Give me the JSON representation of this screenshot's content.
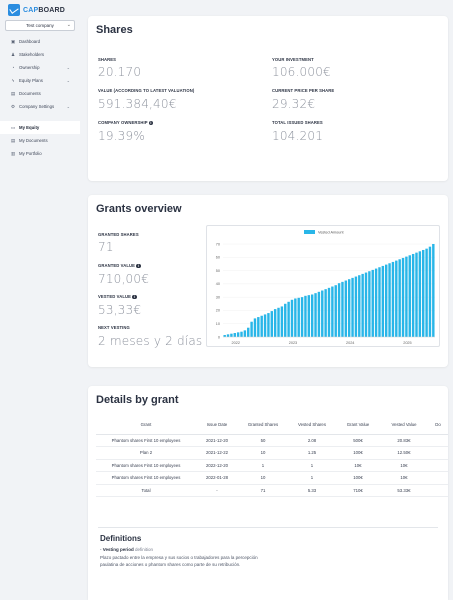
{
  "brand": {
    "name_part1": "CAP",
    "name_part2": "BOARD"
  },
  "company_select": {
    "value": "Test company"
  },
  "sidebar": {
    "items": [
      {
        "label": "Dashboard",
        "icon": "dashboard-icon",
        "chevron": false
      },
      {
        "label": "Stakeholders",
        "icon": "users-icon",
        "chevron": false
      },
      {
        "label": "Ownership",
        "icon": "pie-icon",
        "chevron": true
      },
      {
        "label": "Equity Plans",
        "icon": "bolt-icon",
        "chevron": true
      },
      {
        "label": "Documents",
        "icon": "document-icon",
        "chevron": false
      },
      {
        "label": "Company Settings",
        "icon": "gear-icon",
        "chevron": true
      }
    ],
    "my_items": [
      {
        "label": "My Equity",
        "icon": "id-card-icon",
        "active": true
      },
      {
        "label": "My Documents",
        "icon": "document-icon",
        "active": false
      },
      {
        "label": "My Portfolio",
        "icon": "portfolio-icon",
        "active": false
      }
    ]
  },
  "shares": {
    "title": "Shares",
    "shares_label": "SHARES",
    "shares_value": "20.170",
    "investment_label": "YOUR INVESTMENT",
    "investment_value": "106.000€",
    "value_label": "VALUE (ACCORDING TO LATEST VALUATION)",
    "value_value": "591.384,40€",
    "price_label": "CURRENT PRICE PER SHARE",
    "price_value": "29.32€",
    "ownership_label": "COMPANY OWNERSHIP",
    "ownership_value": "19.39%",
    "issued_label": "TOTAL ISSUED SHARES",
    "issued_value": "104.201"
  },
  "grants": {
    "title": "Grants overview",
    "granted_label": "GRANTED SHARES",
    "granted_value": "71",
    "granted_value_label": "GRANTED VALUE",
    "granted_value_value": "710,00€",
    "vested_label": "VESTED VALUE",
    "vested_value": "53,33€",
    "next_label": "NEXT VESTING",
    "next_value": "2 meses y 2 días"
  },
  "chart_data": {
    "type": "bar",
    "legend": "Vested Amount",
    "legend_position": "top",
    "color": "#29b6e8",
    "ylim": [
      0,
      70
    ],
    "yticks": [
      0,
      10,
      20,
      30,
      40,
      50,
      60,
      70
    ],
    "xticks": [
      "2022",
      "2023",
      "2024",
      "2025"
    ],
    "grid": true,
    "values": [
      1.5,
      2,
      2.5,
      3,
      3.5,
      4,
      5,
      7,
      11.5,
      14,
      15,
      16,
      17,
      18,
      19.5,
      21,
      22,
      23,
      25,
      26.5,
      28,
      29,
      29.5,
      30,
      31,
      31.5,
      32,
      33,
      34,
      35,
      36,
      37,
      38,
      39,
      40.5,
      41.5,
      42.5,
      43.5,
      44.5,
      45.5,
      46.5,
      47.5,
      48.5,
      49.5,
      50.5,
      51.5,
      52.5,
      53.5,
      54.5,
      55.5,
      56.5,
      57.5,
      58.5,
      59.5,
      60.5,
      61.5,
      62.5,
      63.5,
      64.5,
      65.5,
      66.5,
      68,
      70
    ]
  },
  "details": {
    "title": "Details by grant",
    "columns": [
      "Grant",
      "Issue Date",
      "Granted Shares",
      "Vested Shares",
      "Grant Value",
      "Vested Value",
      "Do"
    ],
    "rows": [
      [
        "Phantom shares First 10 employees",
        "2021-12-20",
        "50",
        "2.08",
        "500€",
        "20.83€",
        ""
      ],
      [
        "Plan 2",
        "2021-12-22",
        "10",
        "1.25",
        "100€",
        "12.50€",
        ""
      ],
      [
        "Phantom shares First 10 employees",
        "2022-12-20",
        "1",
        "1",
        "10€",
        "10€",
        ""
      ],
      [
        "Phantom shares First 10 employees",
        "2022-01-28",
        "10",
        "1",
        "100€",
        "10€",
        ""
      ]
    ],
    "total": [
      "Total",
      "-",
      "71",
      "5.33",
      "710€",
      "53.33€",
      ""
    ]
  },
  "definitions": {
    "title": "Definitions",
    "term": "Vesting period",
    "term_suffix": "definition",
    "text": "Plazo pactado entre la empresa y sus socios o trabajadores para la percepción paulatina de acciones o phantom shares como parte de su retribución."
  }
}
